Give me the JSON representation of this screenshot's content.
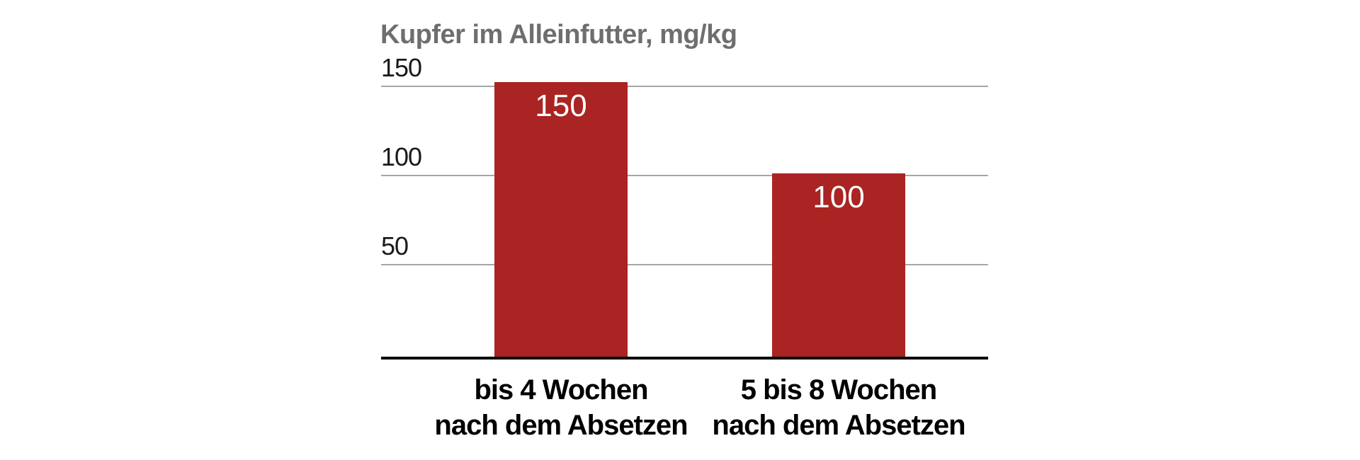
{
  "chart_data": {
    "type": "bar",
    "title": "Kupfer im Alleinfutter, mg/kg",
    "categories": [
      [
        "bis 4 Wochen",
        "nach dem Absetzen"
      ],
      [
        "5 bis 8 Wochen",
        "nach dem Absetzen"
      ]
    ],
    "values": [
      150,
      100
    ],
    "bar_labels": [
      "150",
      "100"
    ],
    "ytick_labels": [
      "150",
      "100",
      "50"
    ],
    "yticks": [
      150,
      100,
      50
    ],
    "ylim": [
      0,
      155
    ],
    "xlabel": "",
    "ylabel": "Kupfer im Alleinfutter, mg/kg",
    "grid": true,
    "legend": "none",
    "colors": {
      "bar": "#A92422",
      "bar_value_label": "#FFFFFF",
      "gridline": "#A6A6A6",
      "axis_line": "#000000",
      "title": "#6E6E6E",
      "tick_label": "#1A1A1A",
      "category_label": "#000000",
      "background": "#FFFFFF"
    }
  }
}
